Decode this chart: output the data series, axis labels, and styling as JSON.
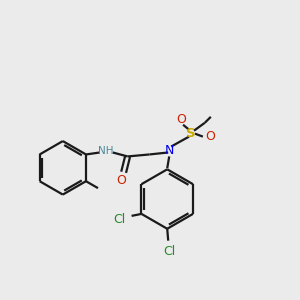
{
  "background_color": "#ebebeb",
  "bond_color": "#1a1a1a",
  "figsize": [
    3.0,
    3.0
  ],
  "dpi": 100,
  "lw": 1.6,
  "atom_colors": {
    "N": "#0000ee",
    "O": "#cc2200",
    "S": "#ccaa00",
    "Cl": "#228B22",
    "NH": "#4a8a9b"
  }
}
